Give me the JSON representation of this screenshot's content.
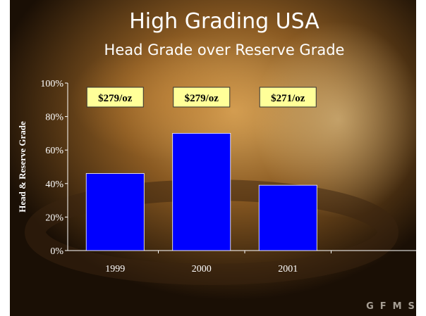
{
  "chart_data": {
    "type": "bar",
    "title": "High Grading USA",
    "subtitle": "Head Grade over Reserve Grade",
    "y_label": "Head & Reserve Grade",
    "categories": [
      "1999",
      "2000",
      "2001",
      null
    ],
    "values": [
      46,
      70,
      39,
      null
    ],
    "annotations": [
      "$279/oz",
      "$279/oz",
      "$271/oz"
    ],
    "color": "#0000ff",
    "ylim": [
      0,
      100
    ],
    "yticks": [
      {
        "value": 0,
        "label": "0%"
      },
      {
        "value": 20,
        "label": "20%"
      },
      {
        "value": 40,
        "label": "40%"
      },
      {
        "value": 60,
        "label": "60%"
      },
      {
        "value": 80,
        "label": "80%"
      },
      {
        "value": 100,
        "label": "100%"
      }
    ],
    "grid": false,
    "logo": "GFMS"
  }
}
